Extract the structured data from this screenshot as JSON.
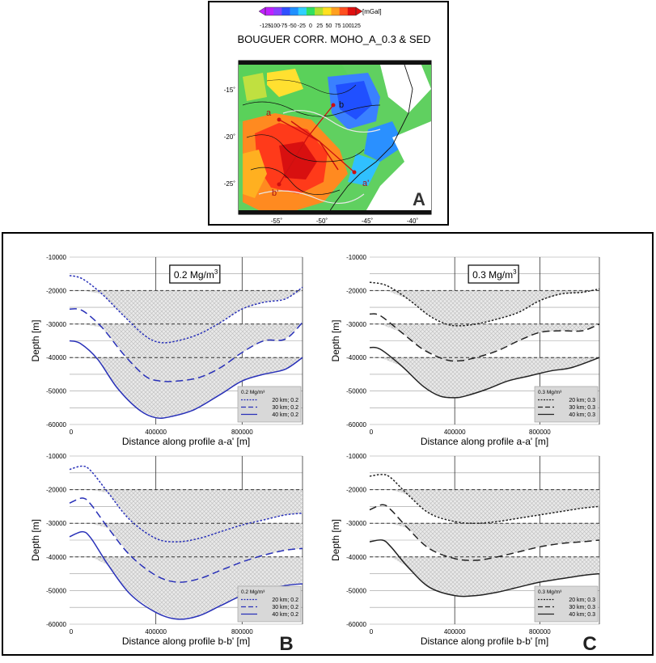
{
  "map_panel": {
    "title": "BOUGUER CORR. MOHO_A_0.3 & SED",
    "unit": "[mGal]",
    "colorbar_ticks": [
      "-125",
      "-100",
      "-75",
      "-50",
      "-25",
      "0",
      "25",
      "50",
      "75",
      "100",
      "125"
    ],
    "colorbar_colors": [
      "#c020ff",
      "#8a40ff",
      "#3050ff",
      "#2090ff",
      "#30d0ff",
      "#30e060",
      "#b0e030",
      "#ffe020",
      "#ffa020",
      "#ff5020",
      "#e01010"
    ],
    "lat_labels": [
      "-15˚",
      "-20˚",
      "-25˚"
    ],
    "lon_labels": [
      "-55˚",
      "-50˚",
      "-45˚",
      "-40˚"
    ],
    "profile_labels": [
      "a",
      "a'",
      "b",
      "b'"
    ],
    "panel_letter": "A"
  },
  "chart_panel_letters": [
    "B",
    "C"
  ],
  "chart_data": [
    {
      "type": "line",
      "density_label": "0.2 Mg/m",
      "density_sup": "3",
      "xlabel": "Distance along profile a-a'  [m]",
      "ylabel": "Depth [m]",
      "xlim": [
        0,
        1080000
      ],
      "ylim": [
        -60000,
        -10000
      ],
      "x_ticks": [
        "0",
        "400000",
        "800000"
      ],
      "y_ticks": [
        "-10000",
        "-20000",
        "-30000",
        "-40000",
        "-50000",
        "-60000"
      ],
      "line_color": "#2830b8",
      "legend": {
        "title": "0.2 Mg/m³",
        "placement": "bottom-right"
      },
      "series": [
        {
          "name": "20 km; 0.2",
          "style": "dotted",
          "ref": -20000,
          "x": [
            0,
            60000,
            150000,
            250000,
            350000,
            420000,
            500000,
            600000,
            700000,
            800000,
            900000,
            1000000,
            1080000
          ],
          "y": [
            -15500,
            -16500,
            -21000,
            -27500,
            -33500,
            -35500,
            -35000,
            -33000,
            -29500,
            -25500,
            -23500,
            -22500,
            -19000
          ]
        },
        {
          "name": "30 km; 0.2",
          "style": "dashed",
          "ref": -30000,
          "x": [
            0,
            60000,
            150000,
            250000,
            350000,
            420000,
            500000,
            600000,
            700000,
            800000,
            900000,
            1000000,
            1080000
          ],
          "y": [
            -25500,
            -26000,
            -31000,
            -39000,
            -45500,
            -47000,
            -47000,
            -46000,
            -43000,
            -38500,
            -35000,
            -34500,
            -29500
          ]
        },
        {
          "name": "40 km; 0.2",
          "style": "solid",
          "ref": -40000,
          "x": [
            0,
            50000,
            130000,
            220000,
            320000,
            400000,
            480000,
            580000,
            700000,
            800000,
            900000,
            1000000,
            1080000
          ],
          "y": [
            -35000,
            -35800,
            -40500,
            -49000,
            -55500,
            -58000,
            -57500,
            -55500,
            -51000,
            -47000,
            -45000,
            -43500,
            -40000
          ]
        }
      ]
    },
    {
      "type": "line",
      "density_label": "0.3 Mg/m",
      "density_sup": "3",
      "xlabel": "Distance along profile a-a'  [m]",
      "ylabel": "Depth [m]",
      "xlim": [
        0,
        1080000
      ],
      "ylim": [
        -60000,
        -10000
      ],
      "x_ticks": [
        "0",
        "400000",
        "800000"
      ],
      "y_ticks": [
        "-10000",
        "-20000",
        "-30000",
        "-40000",
        "-50000",
        "-60000"
      ],
      "line_color": "#222222",
      "legend": {
        "title": "0.3 Mg/m³",
        "placement": "bottom-right"
      },
      "series": [
        {
          "name": "20 km; 0.3",
          "style": "dotted",
          "ref": -20000,
          "x": [
            0,
            80000,
            180000,
            280000,
            360000,
            420000,
            500000,
            600000,
            700000,
            800000,
            900000,
            1000000,
            1080000
          ],
          "y": [
            -17500,
            -18500,
            -22500,
            -27500,
            -30000,
            -30500,
            -30000,
            -28500,
            -26500,
            -23000,
            -21000,
            -20500,
            -19500
          ]
        },
        {
          "name": "30 km; 0.3",
          "style": "dashed",
          "ref": -30000,
          "x": [
            0,
            50000,
            150000,
            250000,
            350000,
            420000,
            500000,
            600000,
            700000,
            800000,
            900000,
            1000000,
            1080000
          ],
          "y": [
            -27000,
            -27500,
            -32500,
            -37500,
            -40500,
            -41000,
            -40000,
            -38000,
            -35000,
            -32500,
            -32000,
            -32000,
            -30000
          ]
        },
        {
          "name": "40 km; 0.3",
          "style": "solid",
          "ref": -40000,
          "x": [
            0,
            50000,
            150000,
            250000,
            330000,
            400000,
            450000,
            550000,
            650000,
            750000,
            850000,
            950000,
            1080000
          ],
          "y": [
            -37000,
            -37500,
            -42500,
            -48500,
            -51500,
            -52000,
            -51500,
            -49500,
            -47000,
            -45500,
            -44000,
            -43000,
            -40000
          ]
        }
      ]
    },
    {
      "type": "line",
      "density_label": "",
      "density_sup": "",
      "xlabel": "Distance along profile b-b'  [m]",
      "ylabel": "Depth [m]",
      "xlim": [
        0,
        1080000
      ],
      "ylim": [
        -60000,
        -10000
      ],
      "x_ticks": [
        "0",
        "400000",
        "800000"
      ],
      "y_ticks": [
        "-10000",
        "-20000",
        "-30000",
        "-40000",
        "-50000",
        "-60000"
      ],
      "line_color": "#2830b8",
      "legend": {
        "title": "0.2 Mg/m³",
        "placement": "bottom-right"
      },
      "series": [
        {
          "name": "20 km; 0.2",
          "style": "dotted",
          "ref": -20000,
          "x": [
            0,
            60000,
            100000,
            180000,
            280000,
            400000,
            500000,
            600000,
            700000,
            800000,
            900000,
            1000000,
            1080000
          ],
          "y": [
            -14000,
            -13000,
            -14500,
            -21000,
            -29000,
            -34500,
            -35500,
            -34500,
            -32500,
            -30500,
            -29000,
            -27500,
            -27000
          ]
        },
        {
          "name": "30 km; 0.2",
          "style": "dashed",
          "ref": -30000,
          "x": [
            0,
            60000,
            100000,
            180000,
            280000,
            400000,
            500000,
            600000,
            700000,
            800000,
            900000,
            1000000,
            1080000
          ],
          "y": [
            -24000,
            -22500,
            -24500,
            -31500,
            -39500,
            -45500,
            -47500,
            -46500,
            -44000,
            -41500,
            -39500,
            -38000,
            -37500
          ]
        },
        {
          "name": "40 km; 0.2",
          "style": "solid",
          "ref": -40000,
          "x": [
            0,
            60000,
            100000,
            180000,
            280000,
            400000,
            500000,
            600000,
            700000,
            800000,
            900000,
            1000000,
            1080000
          ],
          "y": [
            -34000,
            -32500,
            -34500,
            -42500,
            -51000,
            -56500,
            -58500,
            -57500,
            -54500,
            -51500,
            -50000,
            -48500,
            -48000
          ]
        }
      ]
    },
    {
      "type": "line",
      "density_label": "",
      "density_sup": "",
      "xlabel": "Distance along profile b-b'  [m]",
      "ylabel": "Depth [m]",
      "xlim": [
        0,
        1080000
      ],
      "ylim": [
        -60000,
        -10000
      ],
      "x_ticks": [
        "0",
        "400000",
        "800000"
      ],
      "y_ticks": [
        "-10000",
        "-20000",
        "-30000",
        "-40000",
        "-50000",
        "-60000"
      ],
      "line_color": "#222222",
      "legend": {
        "title": "0.3 Mg/m³",
        "placement": "bottom-right"
      },
      "series": [
        {
          "name": "20 km; 0.3",
          "style": "dotted",
          "ref": -20000,
          "x": [
            0,
            60000,
            100000,
            180000,
            280000,
            400000,
            500000,
            600000,
            700000,
            800000,
            900000,
            1000000,
            1080000
          ],
          "y": [
            -16000,
            -15500,
            -16500,
            -21500,
            -27000,
            -29500,
            -30000,
            -29500,
            -28500,
            -27500,
            -26500,
            -25500,
            -25000
          ]
        },
        {
          "name": "30 km; 0.3",
          "style": "dashed",
          "ref": -30000,
          "x": [
            0,
            60000,
            100000,
            180000,
            280000,
            400000,
            500000,
            600000,
            700000,
            800000,
            900000,
            1000000,
            1080000
          ],
          "y": [
            -26000,
            -24500,
            -26000,
            -31500,
            -37500,
            -40500,
            -41000,
            -40000,
            -38500,
            -37000,
            -36000,
            -35500,
            -35000
          ]
        },
        {
          "name": "40 km; 0.3",
          "style": "solid",
          "ref": -40000,
          "x": [
            0,
            60000,
            100000,
            180000,
            280000,
            400000,
            500000,
            600000,
            700000,
            800000,
            900000,
            1000000,
            1080000
          ],
          "y": [
            -35500,
            -35000,
            -37000,
            -43000,
            -49000,
            -51500,
            -51500,
            -50500,
            -49000,
            -47500,
            -46500,
            -45500,
            -45000
          ]
        }
      ]
    }
  ]
}
